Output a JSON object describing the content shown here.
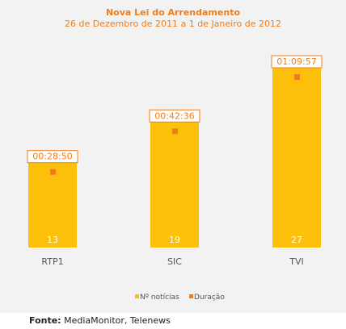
{
  "chart_data": {
    "type": "bar",
    "title": "Nova Lei do Arrendamento",
    "subtitle": "26 de Dezembro de 2011 a 1 de Janeiro de 2012",
    "categories": [
      "RTP1",
      "SIC",
      "TVI"
    ],
    "series": [
      {
        "name": "Nº notícias",
        "values": [
          13,
          19,
          27
        ],
        "color": "#fdc10b"
      },
      {
        "name": "Duração",
        "values": [
          "00:28:50",
          "00:42:36",
          "01:09:57"
        ],
        "color": "#f07c1c"
      }
    ],
    "ylim": [
      0,
      32
    ],
    "grid": false,
    "legend": "bottom"
  },
  "source": {
    "label": "Fonte:",
    "text": "MediaMonitor, Telenews"
  }
}
